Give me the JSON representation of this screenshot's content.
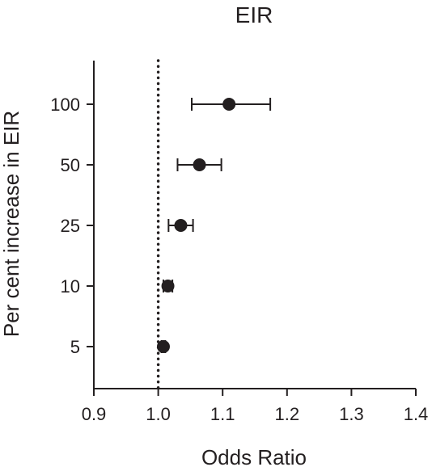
{
  "chart_data": {
    "type": "scatter",
    "title": "EIR",
    "xlabel": "Odds Ratio",
    "ylabel": "Per cent increase in EIR",
    "xlim": [
      0.9,
      1.4
    ],
    "x_ticks": [
      "0.9",
      "1.0",
      "1.1",
      "1.2",
      "1.3",
      "1.4"
    ],
    "reference_line": 1.0,
    "grid": false,
    "categories": [
      "100",
      "50",
      "25",
      "10",
      "5"
    ],
    "points": [
      {
        "category": "100",
        "value": 1.11,
        "low": 1.052,
        "high": 1.174
      },
      {
        "category": "50",
        "value": 1.064,
        "low": 1.03,
        "high": 1.098
      },
      {
        "category": "25",
        "value": 1.035,
        "low": 1.016,
        "high": 1.054
      },
      {
        "category": "10",
        "value": 1.015,
        "low": 1.008,
        "high": 1.022
      },
      {
        "category": "5",
        "value": 1.008,
        "low": 1.005,
        "high": 1.011
      }
    ],
    "colors": {
      "marker": "#231f20",
      "axis": "#231f20"
    }
  }
}
